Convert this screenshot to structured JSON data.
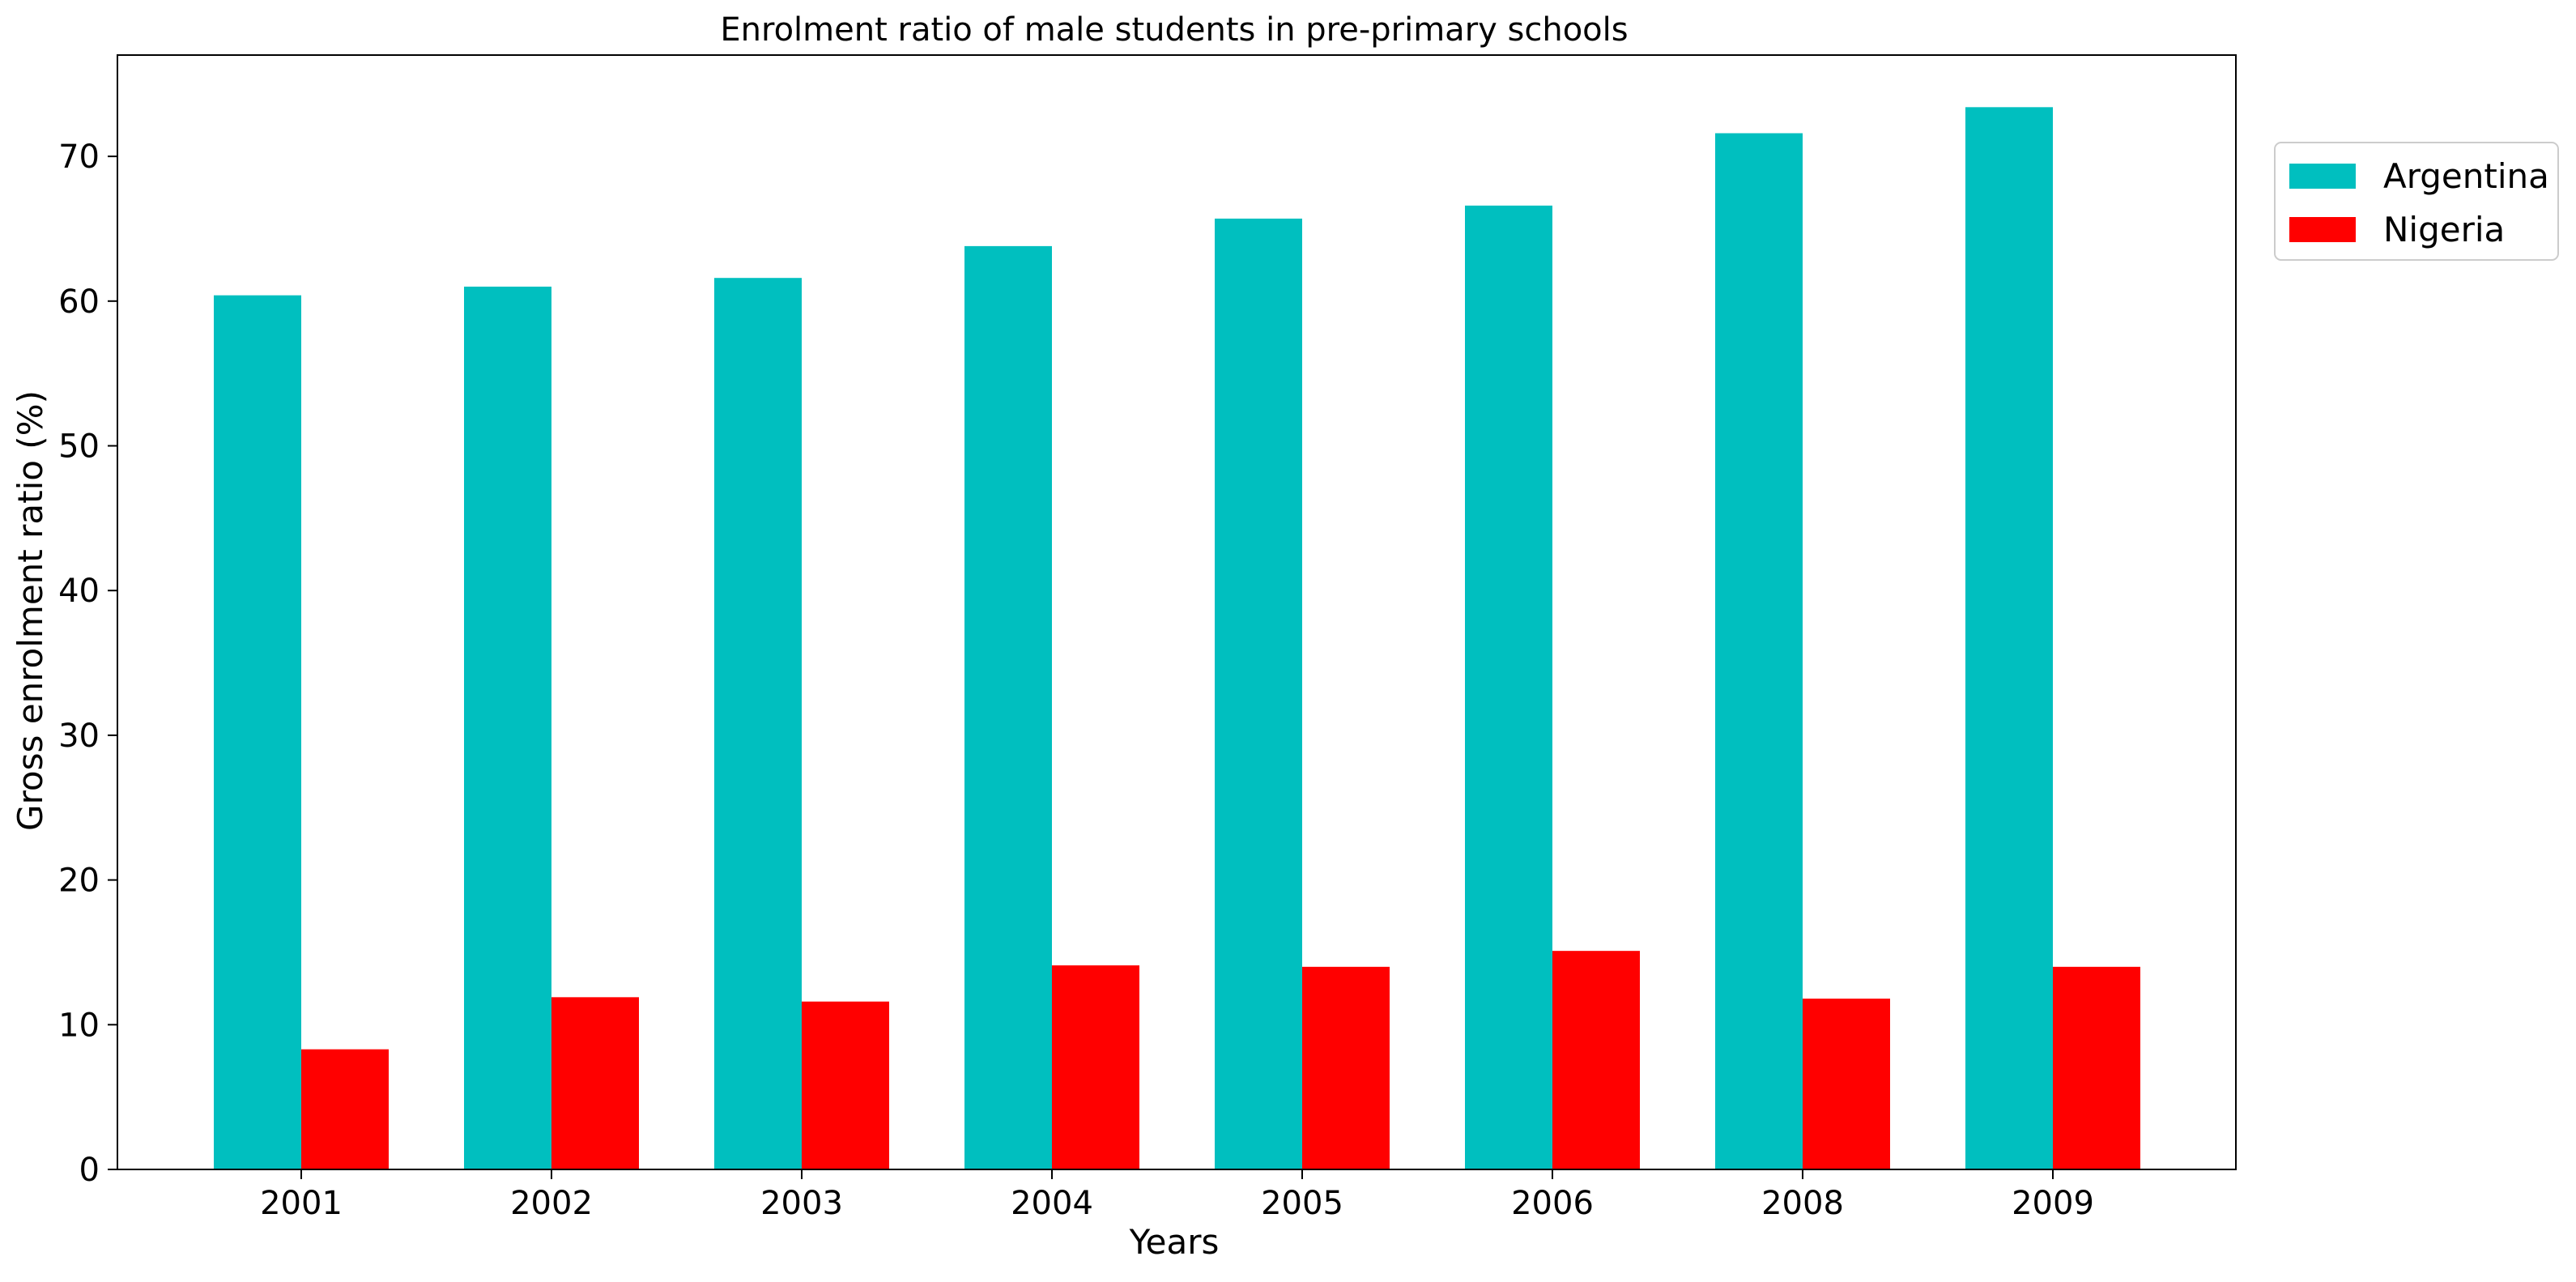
{
  "chart_data": {
    "type": "bar",
    "title": "Enrolment ratio of male students in pre-primary schools",
    "xlabel": "Years",
    "ylabel": "Gross enrolment ratio (%)",
    "categories": [
      "2001",
      "2002",
      "2003",
      "2004",
      "2005",
      "2006",
      "2008",
      "2009"
    ],
    "series": [
      {
        "name": "Argentina",
        "color": "#00bfbf",
        "values": [
          60.4,
          61.0,
          61.6,
          63.8,
          65.7,
          66.6,
          71.6,
          73.4
        ]
      },
      {
        "name": "Nigeria",
        "color": "#ff0000",
        "values": [
          8.3,
          11.9,
          11.6,
          14.1,
          14.0,
          15.1,
          11.8,
          14.0
        ]
      }
    ],
    "ylim": [
      0,
      77
    ],
    "yticks": [
      "0",
      "10",
      "20",
      "30",
      "40",
      "50",
      "60",
      "70"
    ],
    "grid": false,
    "legend_position": "outside-top-right"
  }
}
